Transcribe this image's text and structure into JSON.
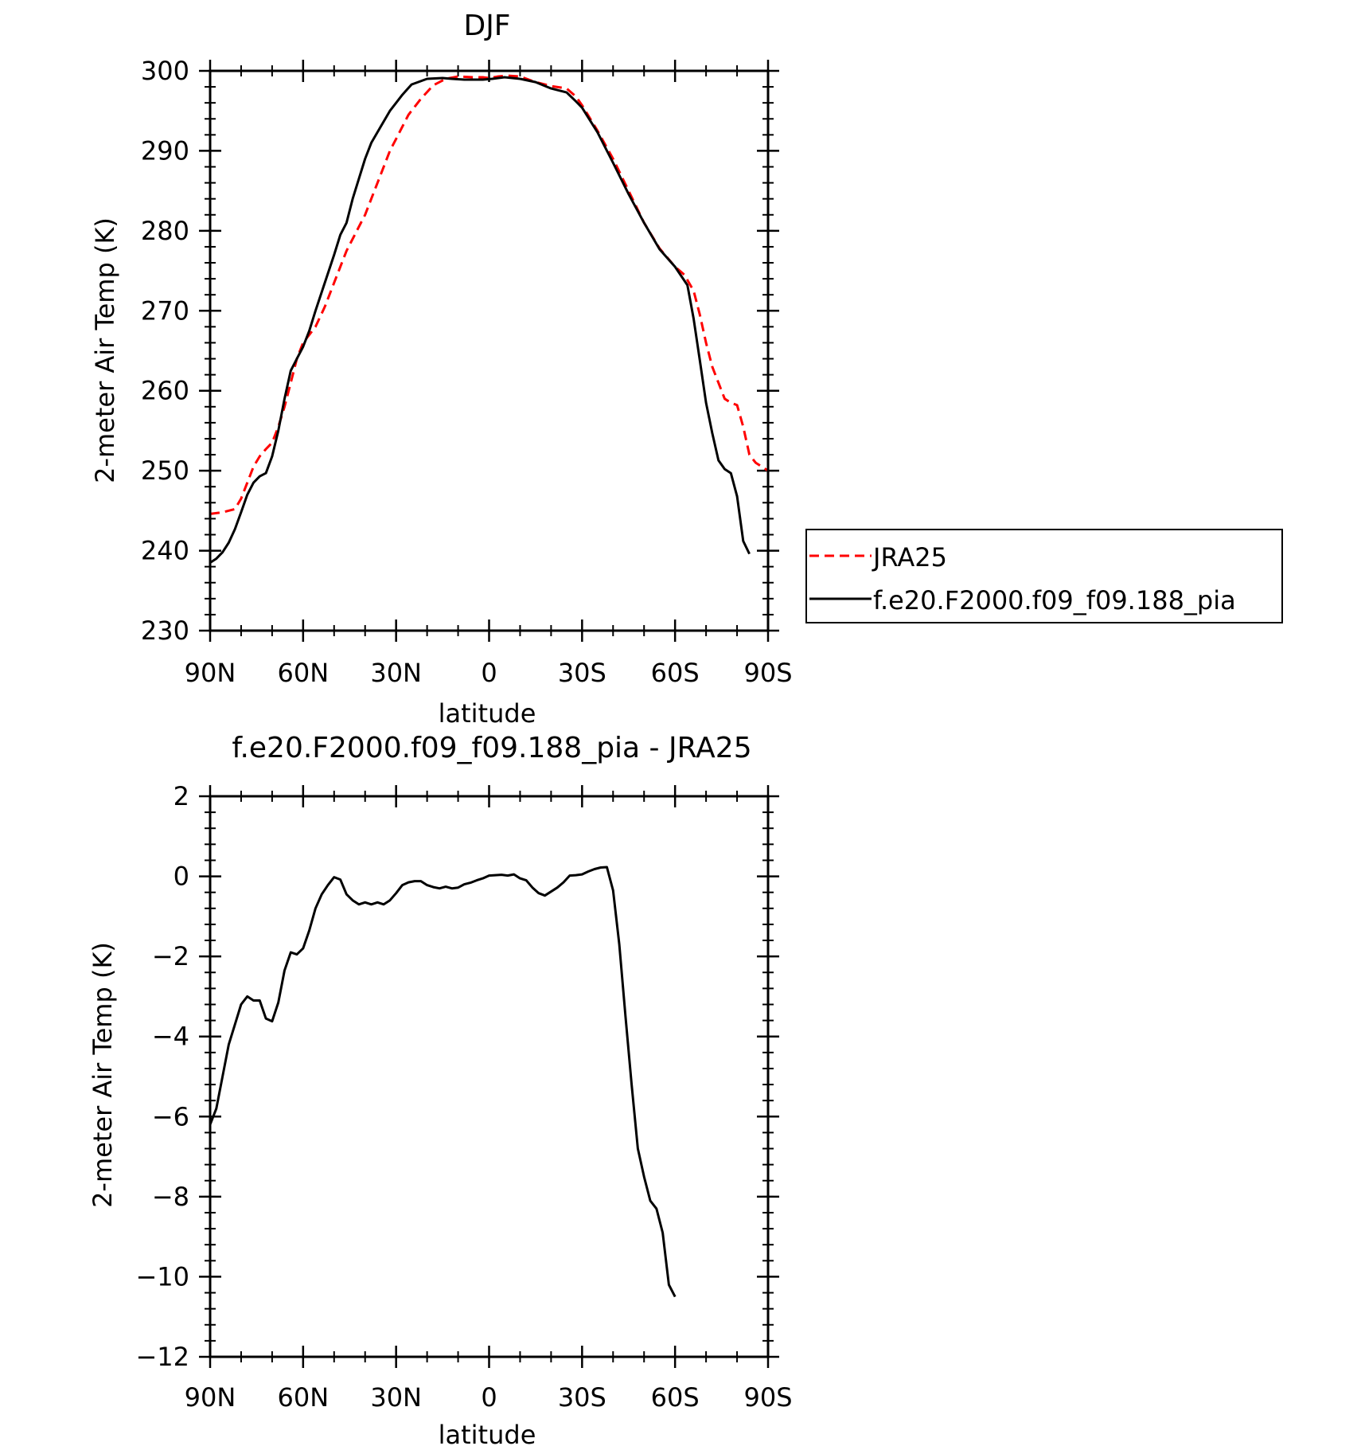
{
  "chart_data": [
    {
      "type": "line",
      "title": "DJF",
      "xlabel": "latitude",
      "ylabel": "2-meter Air Temp (K)",
      "xlim": [
        90,
        -90
      ],
      "ylim": [
        230,
        300
      ],
      "xticks": [
        {
          "value": 90,
          "label": "90N"
        },
        {
          "value": 60,
          "label": "60N"
        },
        {
          "value": 30,
          "label": "30N"
        },
        {
          "value": 0,
          "label": "0"
        },
        {
          "value": -30,
          "label": "30S"
        },
        {
          "value": -60,
          "label": "60S"
        },
        {
          "value": -90,
          "label": "90S"
        }
      ],
      "yticks": [
        {
          "value": 300,
          "label": "300"
        },
        {
          "value": 290,
          "label": "290"
        },
        {
          "value": 280,
          "label": "280"
        },
        {
          "value": 270,
          "label": "270"
        },
        {
          "value": 260,
          "label": "260"
        },
        {
          "value": 250,
          "label": "250"
        },
        {
          "value": 240,
          "label": "240"
        },
        {
          "value": 230,
          "label": "230"
        }
      ],
      "legend": {
        "position": "right",
        "entries": [
          "JRA25",
          "f.e20.F2000.f09_f09.188_pia"
        ]
      },
      "series": [
        {
          "name": "JRA25",
          "color": "#ff0000",
          "dash": "dashed",
          "points": [
            [
              90,
              244.6
            ],
            [
              86,
              244.8
            ],
            [
              82,
              245.2
            ],
            [
              80,
              246.5
            ],
            [
              78,
              248.5
            ],
            [
              76,
              250.5
            ],
            [
              74,
              251.8
            ],
            [
              72,
              252.7
            ],
            [
              70,
              253.5
            ],
            [
              68,
              255.5
            ],
            [
              66,
              258
            ],
            [
              64,
              261
            ],
            [
              62,
              264
            ],
            [
              60,
              266
            ],
            [
              56,
              268
            ],
            [
              53,
              270.5
            ],
            [
              50,
              273.5
            ],
            [
              46,
              277.5
            ],
            [
              42,
              280.5
            ],
            [
              40,
              282
            ],
            [
              38,
              284
            ],
            [
              35,
              287
            ],
            [
              32,
              290
            ],
            [
              30,
              291.5
            ],
            [
              26,
              294.5
            ],
            [
              22,
              296.5
            ],
            [
              18,
              298.2
            ],
            [
              14,
              299
            ],
            [
              10,
              299.3
            ],
            [
              5,
              299.2
            ],
            [
              2,
              299.2
            ],
            [
              0,
              299.1
            ],
            [
              -3,
              299.3
            ],
            [
              -6,
              299.4
            ],
            [
              -10,
              299.3
            ],
            [
              -15,
              298.6
            ],
            [
              -20,
              298.1
            ],
            [
              -25,
              297.8
            ],
            [
              -28,
              296.8
            ],
            [
              -30,
              295.7
            ],
            [
              -35,
              292.5
            ],
            [
              -40,
              289
            ],
            [
              -45,
              285
            ],
            [
              -50,
              281
            ],
            [
              -55,
              277.8
            ],
            [
              -60,
              275.5
            ],
            [
              -63,
              274.5
            ],
            [
              -66,
              272.5
            ],
            [
              -68,
              269.5
            ],
            [
              -70,
              266
            ],
            [
              -72,
              263
            ],
            [
              -74,
              261
            ],
            [
              -76,
              259
            ],
            [
              -78,
              258.5
            ],
            [
              -80,
              258.2
            ],
            [
              -82,
              255.5
            ],
            [
              -84,
              252
            ],
            [
              -86,
              251
            ],
            [
              -88,
              250.5
            ],
            [
              -90,
              250
            ]
          ]
        },
        {
          "name": "f.e20.F2000.f09_f09.188_pia",
          "color": "#000000",
          "dash": "solid",
          "points": [
            [
              90,
              238.5
            ],
            [
              88,
              239
            ],
            [
              86,
              239.8
            ],
            [
              84,
              241
            ],
            [
              82,
              242.7
            ],
            [
              80,
              244.8
            ],
            [
              78,
              247
            ],
            [
              76,
              248.5
            ],
            [
              74,
              249.3
            ],
            [
              72,
              249.7
            ],
            [
              70,
              251.8
            ],
            [
              68,
              255
            ],
            [
              66,
              259
            ],
            [
              64,
              262.5
            ],
            [
              62,
              264
            ],
            [
              60,
              265.5
            ],
            [
              58,
              267.5
            ],
            [
              56,
              270
            ],
            [
              53,
              273.5
            ],
            [
              50,
              277
            ],
            [
              48,
              279.5
            ],
            [
              46,
              281
            ],
            [
              44,
              284
            ],
            [
              42,
              286.5
            ],
            [
              40,
              289
            ],
            [
              38,
              291
            ],
            [
              35,
              293
            ],
            [
              32,
              295
            ],
            [
              28,
              297
            ],
            [
              25,
              298.3
            ],
            [
              20,
              299
            ],
            [
              15,
              299.1
            ],
            [
              12,
              299
            ],
            [
              8,
              298.9
            ],
            [
              5,
              298.9
            ],
            [
              2,
              298.9
            ],
            [
              -1,
              299
            ],
            [
              -5,
              299.2
            ],
            [
              -10,
              299
            ],
            [
              -15,
              298.6
            ],
            [
              -20,
              297.8
            ],
            [
              -25,
              297.3
            ],
            [
              -28,
              296.2
            ],
            [
              -30,
              295.4
            ],
            [
              -35,
              292.3
            ],
            [
              -40,
              288.5
            ],
            [
              -45,
              284.6
            ],
            [
              -50,
              281
            ],
            [
              -55,
              277.7
            ],
            [
              -60,
              275.5
            ],
            [
              -64,
              273.2
            ],
            [
              -66,
              269
            ],
            [
              -68,
              263.8
            ],
            [
              -70,
              258.5
            ],
            [
              -72,
              254.7
            ],
            [
              -74,
              251.3
            ],
            [
              -76,
              250.2
            ],
            [
              -78,
              249.7
            ],
            [
              -80,
              246.8
            ],
            [
              -82,
              241.2
            ],
            [
              -84,
              239.6
            ]
          ]
        }
      ]
    },
    {
      "type": "line",
      "title": "f.e20.F2000.f09_f09.188_pia - JRA25",
      "xlabel": "latitude",
      "ylabel": "2-meter Air Temp (K)",
      "xlim": [
        90,
        -90
      ],
      "ylim": [
        -12,
        2
      ],
      "xticks": [
        {
          "value": 90,
          "label": "90N"
        },
        {
          "value": 60,
          "label": "60N"
        },
        {
          "value": 30,
          "label": "30N"
        },
        {
          "value": 0,
          "label": "0"
        },
        {
          "value": -30,
          "label": "30S"
        },
        {
          "value": -60,
          "label": "60S"
        },
        {
          "value": -90,
          "label": "90S"
        }
      ],
      "yticks": [
        {
          "value": 2,
          "label": "2"
        },
        {
          "value": 0,
          "label": "0"
        },
        {
          "value": -2,
          "label": "−2"
        },
        {
          "value": -4,
          "label": "−4"
        },
        {
          "value": -6,
          "label": "−6"
        },
        {
          "value": -8,
          "label": "−8"
        },
        {
          "value": -10,
          "label": "−10"
        },
        {
          "value": -12,
          "label": "−12"
        }
      ],
      "series": [
        {
          "color": "#000000",
          "dash": "solid",
          "points": [
            [
              90,
              -6.2
            ],
            [
              88,
              -5.8
            ],
            [
              86,
              -5
            ],
            [
              84,
              -4.2
            ],
            [
              82,
              -3.7
            ],
            [
              80,
              -3.2
            ],
            [
              78,
              -3
            ],
            [
              76,
              -3.1
            ],
            [
              74,
              -3.1
            ],
            [
              72,
              -3.55
            ],
            [
              70,
              -3.62
            ],
            [
              68,
              -3.15
            ],
            [
              66,
              -2.35
            ],
            [
              64,
              -1.9
            ],
            [
              62,
              -1.95
            ],
            [
              60,
              -1.8
            ],
            [
              58,
              -1.35
            ],
            [
              56,
              -0.8
            ],
            [
              54,
              -0.45
            ],
            [
              52,
              -0.22
            ],
            [
              50,
              -0.02
            ],
            [
              48,
              -0.08
            ],
            [
              46,
              -0.45
            ],
            [
              44,
              -0.6
            ],
            [
              42,
              -0.7
            ],
            [
              40,
              -0.65
            ],
            [
              38,
              -0.7
            ],
            [
              36,
              -0.65
            ],
            [
              34,
              -0.7
            ],
            [
              32,
              -0.6
            ],
            [
              30,
              -0.42
            ],
            [
              28,
              -0.22
            ],
            [
              26,
              -0.15
            ],
            [
              24,
              -0.12
            ],
            [
              22,
              -0.12
            ],
            [
              20,
              -0.22
            ],
            [
              18,
              -0.27
            ],
            [
              16,
              -0.3
            ],
            [
              14,
              -0.26
            ],
            [
              12,
              -0.3
            ],
            [
              10,
              -0.28
            ],
            [
              8,
              -0.2
            ],
            [
              6,
              -0.16
            ],
            [
              4,
              -0.1
            ],
            [
              2,
              -0.05
            ],
            [
              0,
              0.02
            ],
            [
              -2,
              0.03
            ],
            [
              -4,
              0.04
            ],
            [
              -6,
              0.02
            ],
            [
              -8,
              0.05
            ],
            [
              -10,
              -0.05
            ],
            [
              -12,
              -0.1
            ],
            [
              -14,
              -0.28
            ],
            [
              -16,
              -0.42
            ],
            [
              -18,
              -0.48
            ],
            [
              -20,
              -0.38
            ],
            [
              -22,
              -0.28
            ],
            [
              -24,
              -0.15
            ],
            [
              -26,
              0.02
            ],
            [
              -28,
              0.03
            ],
            [
              -30,
              0.05
            ],
            [
              -32,
              0.12
            ],
            [
              -34,
              0.18
            ],
            [
              -36,
              0.22
            ],
            [
              -38,
              0.23
            ],
            [
              -40,
              -0.35
            ],
            [
              -42,
              -1.7
            ],
            [
              -44,
              -3.5
            ],
            [
              -46,
              -5.2
            ],
            [
              -48,
              -6.8
            ],
            [
              -50,
              -7.5
            ],
            [
              -52,
              -8.1
            ],
            [
              -54,
              -8.3
            ],
            [
              -56,
              -8.9
            ],
            [
              -58,
              -10.2
            ],
            [
              -60,
              -10.5
            ]
          ]
        }
      ]
    }
  ]
}
